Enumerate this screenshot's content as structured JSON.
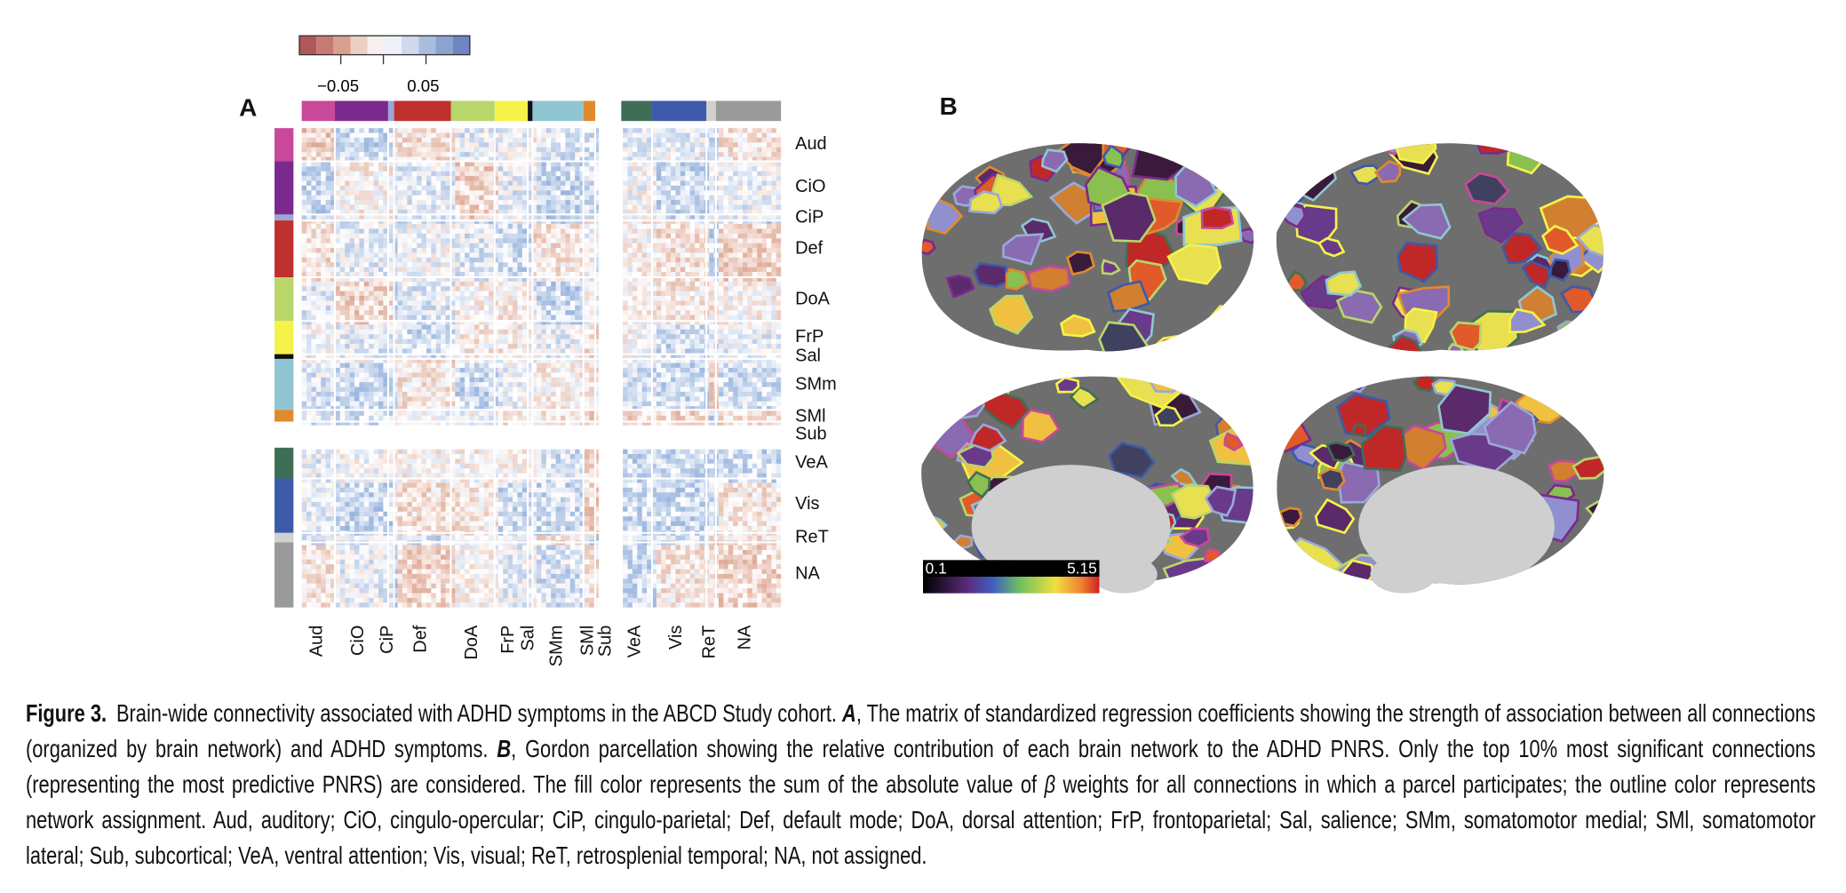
{
  "panel_a": {
    "label": "A",
    "colorbar_ticks": [
      "−0.05",
      "0.05"
    ],
    "networks": [
      "Aud",
      "CiO",
      "CiP",
      "Def",
      "DoA",
      "FrP",
      "Sal",
      "SMm",
      "SMl",
      "Sub",
      "VeA",
      "Vis",
      "ReT",
      "NA"
    ]
  },
  "panel_b": {
    "label": "B",
    "colorbar_min": "0.1",
    "colorbar_max": "5.15"
  },
  "caption": {
    "label": "Figure 3.",
    "text_1": "Brain-wide connectivity associated with ADHD symptoms in the ABCD Study cohort. ",
    "panel_a": "A",
    "text_2": ", The matrix of standardized regression coefficients showing the strength of association between all connections (organized by brain network) and ADHD symptoms. ",
    "panel_b": "B",
    "text_3": ", Gordon parcellation showing the relative contribution of each brain network to the ADHD PNRS. Only the top 10% most significant connections (representing the most predictive PNRS) are considered. The fill color represents the sum of the absolute value of ",
    "beta": "β",
    "text_4": " weights for all connections in which a parcel participates; the outline color represents network assignment. Aud, auditory; CiO, cingulo-opercular; CiP, cingulo-parietal; Def, default mode; DoA, dorsal attention; FrP, frontoparietal; Sal, salience; SMm, somatomotor medial; SMl, somatomotor lateral; Sub, subcortical; VeA, ventral attention; Vis, visual; ReT, retrosplenial temporal; NA, not assigned."
  }
}
